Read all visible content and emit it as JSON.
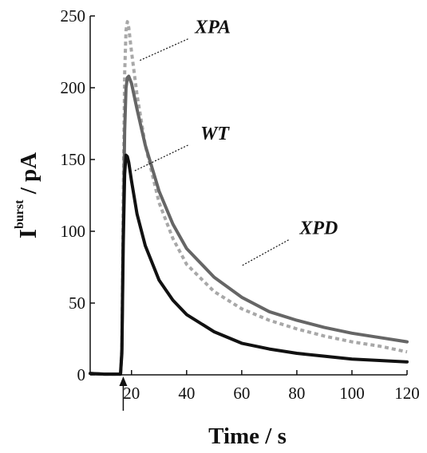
{
  "chart_data": {
    "type": "line",
    "xlabel": "Time / s",
    "ylabel_main": "I",
    "ylabel_super": "burst",
    "ylabel_unit": " / pA",
    "xlim": [
      5,
      120
    ],
    "ylim": [
      0,
      250
    ],
    "xticks": [
      20,
      40,
      60,
      80,
      100,
      120
    ],
    "yticks": [
      0,
      50,
      100,
      150,
      200,
      250
    ],
    "grid": false,
    "marker_time": 17,
    "series": [
      {
        "name": "XPA",
        "color": "#a8a8a8",
        "dash": "dotted",
        "points": [
          [
            5,
            1
          ],
          [
            10,
            0.5
          ],
          [
            14,
            0.5
          ],
          [
            16,
            0.5
          ],
          [
            16.5,
            20
          ],
          [
            17,
            120
          ],
          [
            17.5,
            210
          ],
          [
            18,
            240
          ],
          [
            18.5,
            246
          ],
          [
            19,
            242
          ],
          [
            20,
            225
          ],
          [
            22,
            195
          ],
          [
            25,
            160
          ],
          [
            30,
            120
          ],
          [
            35,
            95
          ],
          [
            40,
            77
          ],
          [
            50,
            58
          ],
          [
            60,
            46
          ],
          [
            70,
            38
          ],
          [
            80,
            32
          ],
          [
            90,
            27
          ],
          [
            100,
            23
          ],
          [
            110,
            20
          ],
          [
            120,
            16
          ]
        ]
      },
      {
        "name": "",
        "color": "#666666",
        "dash": "solid",
        "points": [
          [
            5,
            1
          ],
          [
            10,
            0.5
          ],
          [
            14,
            0.5
          ],
          [
            16,
            0.5
          ],
          [
            16.5,
            18
          ],
          [
            17,
            100
          ],
          [
            17.5,
            170
          ],
          [
            18,
            200
          ],
          [
            18.5,
            207
          ],
          [
            19,
            208
          ],
          [
            20,
            203
          ],
          [
            22,
            185
          ],
          [
            25,
            160
          ],
          [
            30,
            128
          ],
          [
            35,
            105
          ],
          [
            40,
            88
          ],
          [
            50,
            68
          ],
          [
            60,
            54
          ],
          [
            70,
            44
          ],
          [
            80,
            38
          ],
          [
            90,
            33
          ],
          [
            100,
            29
          ],
          [
            110,
            26
          ],
          [
            120,
            23
          ]
        ]
      },
      {
        "name": "WT",
        "color": "#111111",
        "dash": "solid",
        "points": [
          [
            5,
            1
          ],
          [
            10,
            0.5
          ],
          [
            14,
            0.5
          ],
          [
            16,
            0.5
          ],
          [
            16.5,
            15
          ],
          [
            17,
            90
          ],
          [
            17.5,
            140
          ],
          [
            18,
            153
          ],
          [
            18.5,
            152
          ],
          [
            19,
            148
          ],
          [
            20,
            135
          ],
          [
            22,
            112
          ],
          [
            25,
            90
          ],
          [
            30,
            66
          ],
          [
            35,
            52
          ],
          [
            40,
            42
          ],
          [
            50,
            30
          ],
          [
            60,
            22
          ],
          [
            70,
            18
          ],
          [
            80,
            15
          ],
          [
            90,
            13
          ],
          [
            100,
            11
          ],
          [
            110,
            10
          ],
          [
            120,
            9
          ]
        ]
      }
    ],
    "annotations": [
      {
        "text": "XPA",
        "x": 43,
        "y": 238,
        "lx": 40.5,
        "ly": 234,
        "tx": 23,
        "ty": 219
      },
      {
        "text": "WT",
        "x": 45,
        "y": 164,
        "lx": 40.5,
        "ly": 160,
        "tx": 21,
        "ty": 142
      },
      {
        "text": "XPD",
        "x": 81,
        "y": 98,
        "lx": 77,
        "ly": 94,
        "tx": 60,
        "ty": 76
      }
    ]
  }
}
